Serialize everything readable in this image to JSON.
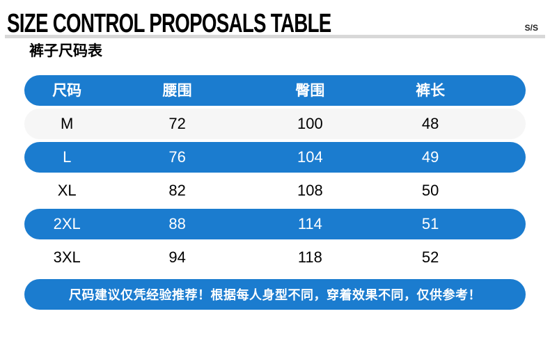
{
  "page": {
    "title": "SIZE CONTROL PROPOSALS TABLE",
    "season": "S/S",
    "subtitle": "裤子尺码表"
  },
  "size_chart": {
    "columns": [
      "尺码",
      "腰围",
      "臀围",
      "裤长"
    ],
    "rows": [
      {
        "cells": [
          "M",
          "72",
          "100",
          "48"
        ],
        "style": "gray"
      },
      {
        "cells": [
          "L",
          "76",
          "104",
          "49"
        ],
        "style": "blue"
      },
      {
        "cells": [
          "XL",
          "82",
          "108",
          "50"
        ],
        "style": "white"
      },
      {
        "cells": [
          "2XL",
          "88",
          "114",
          "51"
        ],
        "style": "blue"
      },
      {
        "cells": [
          "3XL",
          "94",
          "118",
          "52"
        ],
        "style": "white"
      }
    ]
  },
  "footer_note": "尺码建议仅凭经验推荐！根据每人身型不同，穿着效果不同，仅供参考！",
  "colors": {
    "accent_blue": "#1b7ccf",
    "row_gray": "#f6f6f6",
    "underline_gray": "#d8d8d8",
    "text_black": "#111111"
  }
}
